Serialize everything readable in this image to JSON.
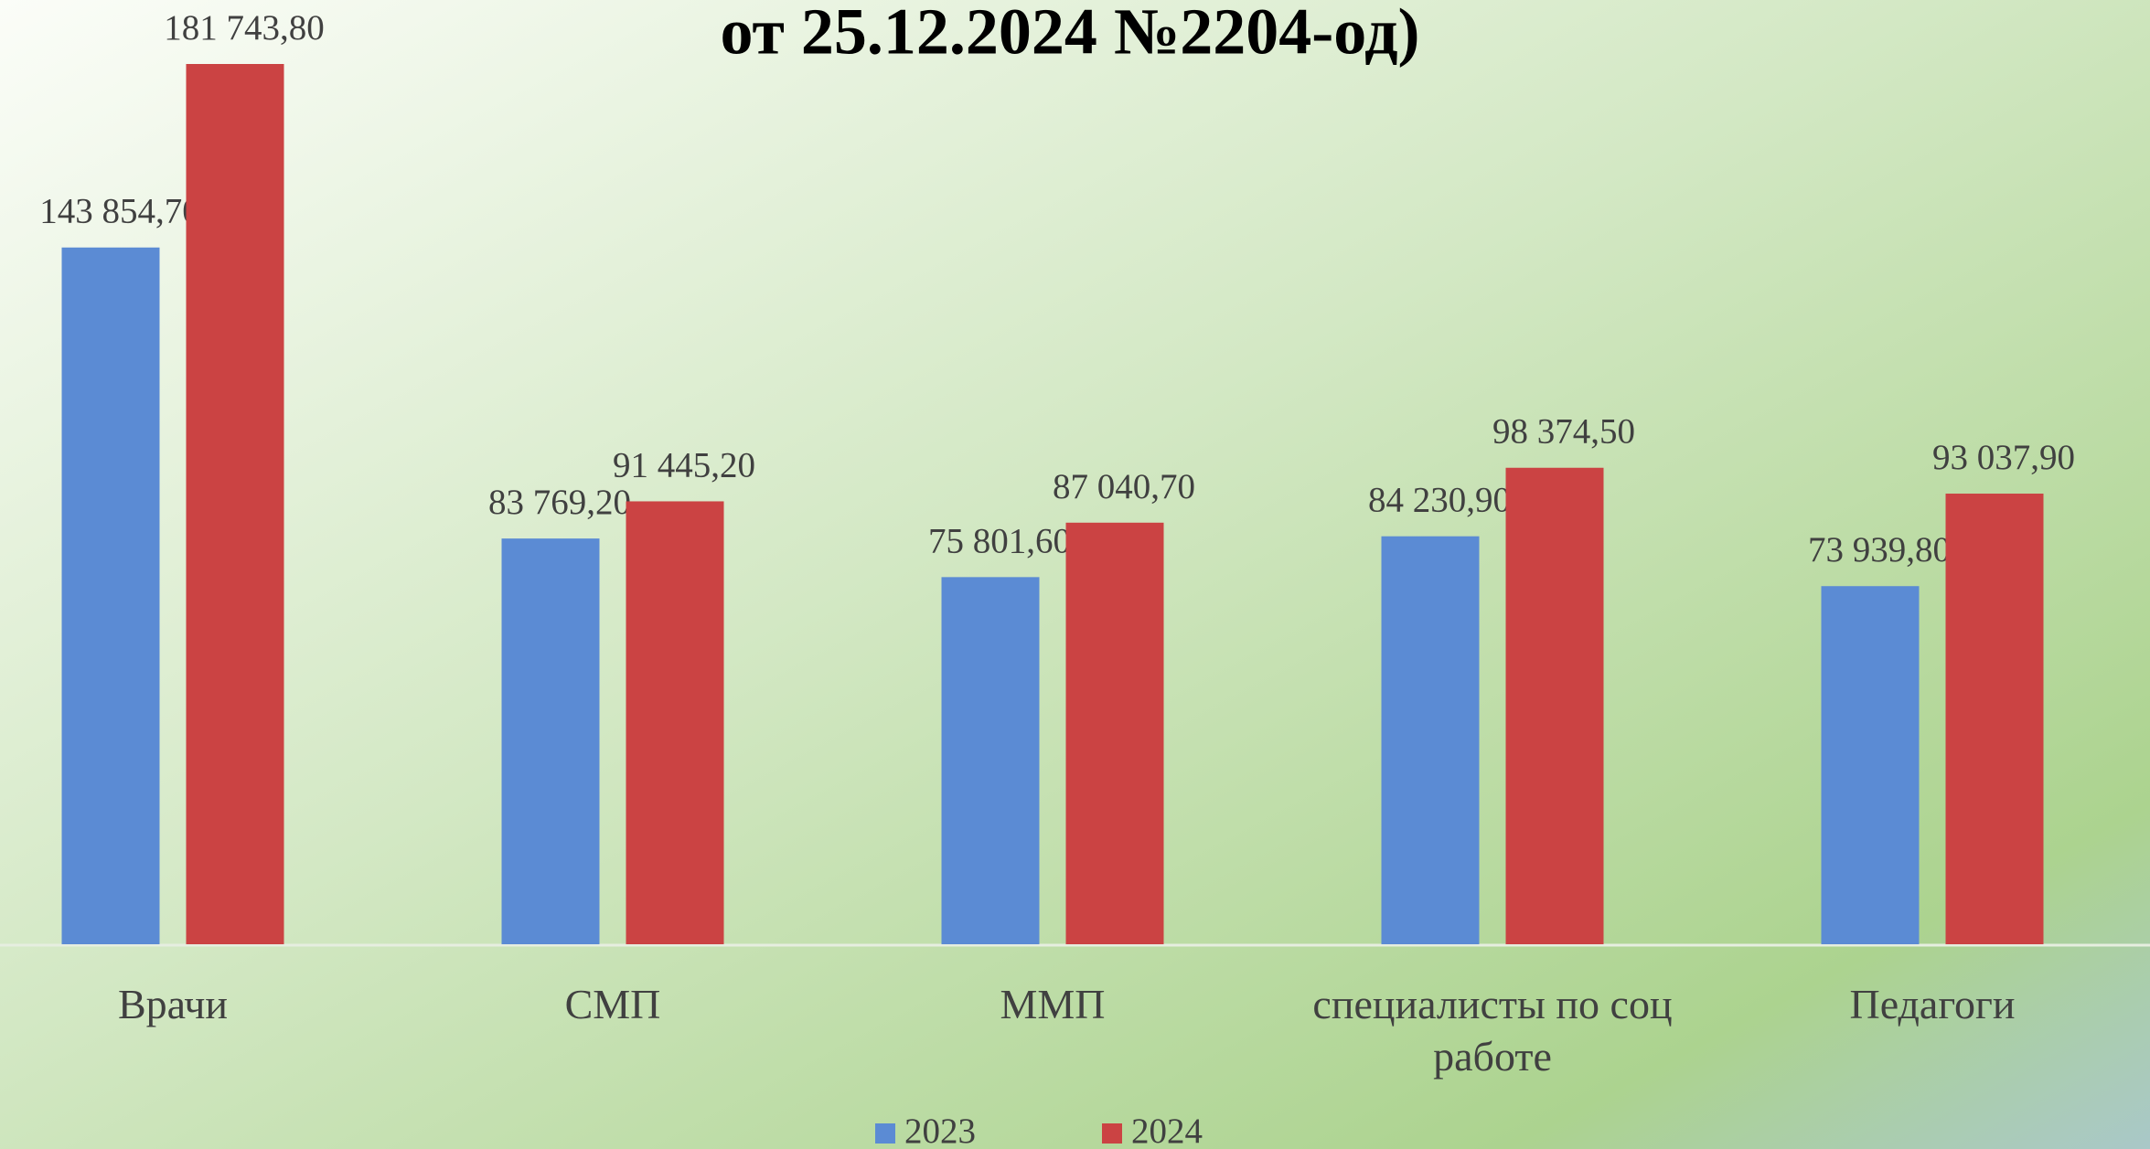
{
  "chart_data": {
    "type": "bar",
    "title": "от 25.12.2024 №2204-од)",
    "categories": [
      "Врачи",
      "СМП",
      "ММП",
      "специалисты по соц работе",
      "Педагоги"
    ],
    "series": [
      {
        "name": "2023",
        "color": "#5b8bd4",
        "values": [
          143854.7,
          83769.2,
          75801.6,
          84230.9,
          73939.8
        ],
        "value_labels": [
          "143 854,70",
          "83 769,20",
          "75 801,60",
          "84 230,90",
          "73 939,80"
        ]
      },
      {
        "name": "2024",
        "color": "#cb4343",
        "values": [
          181743.8,
          91445.2,
          87040.7,
          98374.5,
          93037.9
        ],
        "value_labels": [
          "181 743,80",
          "91 445,20",
          "87 040,70",
          "98 374,50",
          "93 037,90"
        ]
      }
    ]
  }
}
